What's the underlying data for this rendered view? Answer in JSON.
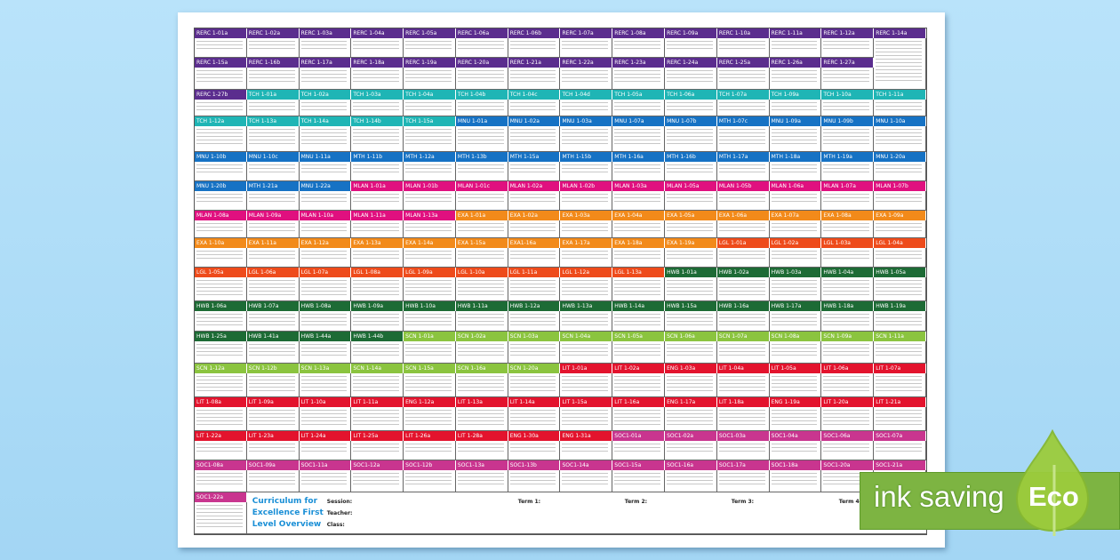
{
  "colors": {
    "RERC": "#5b2d8e",
    "TCH": "#1fb5b5",
    "MNU": "#1672c4",
    "MTH": "#1672c4",
    "MLAN": "#e0107f",
    "EXA": "#f28a1a",
    "LGL": "#ee4b1b",
    "HWB": "#1d6b35",
    "SCN": "#8bc43f",
    "LIT": "#e3132d",
    "ENG": "#e3132d",
    "SOC": "#c9358f",
    "title_blue": "#1a8fd6",
    "eco_green": "#7db442"
  },
  "rows": [
    [
      "RERC 1-01a",
      "RERC 1-02a",
      "RERC 1-03a",
      "RERC 1-04a",
      "RERC 1-05a",
      "RERC 1-06a",
      "RERC 1-06b",
      "RERC 1-07a",
      "RERC 1-08a",
      "RERC 1-09a",
      "RERC 1-10a",
      "RERC 1-11a",
      "RERC 1-12a",
      "RERC 1-14a"
    ],
    [
      "RERC 1-15a",
      "RERC 1-16b",
      "RERC 1-17a",
      "RERC 1-18a",
      "RERC 1-19a",
      "RERC 1-20a",
      "RERC 1-21a",
      "RERC 1-22a",
      "RERC 1-23a",
      "RERC 1-24a",
      "RERC 1-25a",
      "RERC 1-26a",
      "RERC 1-27a"
    ],
    [
      "RERC 1-27b",
      "TCH 1-01a",
      "TCH 1-02a",
      "TCH 1-03a",
      "TCH 1-04a",
      "TCH 1-04b",
      "TCH 1-04c",
      "TCH 1-04d",
      "TCH 1-05a",
      "TCH 1-06a",
      "TCH 1-07a",
      "TCH 1-09a",
      "TCH 1-10a",
      "TCH 1-11a"
    ],
    [
      "TCH 1-12a",
      "TCH 1-13a",
      "TCH 1-14a",
      "TCH 1-14b",
      "TCH 1-15a",
      "MNU 1-01a",
      "MNU 1-02a",
      "MNU 1-03a",
      "MNU 1-07a",
      "MNU 1-07b",
      "MTH 1-07c",
      "MNU 1-09a",
      "MNU 1-09b",
      "MNU 1-10a"
    ],
    [
      "MNU 1-10b",
      "MNU 1-10c",
      "MNU 1-11a",
      "MTH 1-11b",
      "MTH 1-12a",
      "MTH 1-13b",
      "MTH 1-15a",
      "MTH 1-15b",
      "MTH 1-16a",
      "MTH 1-16b",
      "MTH 1-17a",
      "MTH 1-18a",
      "MTH 1-19a",
      "MNU 1-20a"
    ],
    [
      "MNU 1-20b",
      "MTH 1-21a",
      "MNU 1-22a",
      "MLAN 1-01a",
      "MLAN 1-01b",
      "MLAN 1-01c",
      "MLAN 1-02a",
      "MLAN 1-02b",
      "MLAN 1-03a",
      "MLAN 1-05a",
      "MLAN 1-05b",
      "MLAN 1-06a",
      "MLAN 1-07a",
      "MLAN 1-07b"
    ],
    [
      "MLAN 1-08a",
      "MLAN 1-09a",
      "MLAN 1-10a",
      "MLAN 1-11a",
      "MLAN 1-13a",
      "EXA 1-01a",
      "EXA 1-02a",
      "EXA 1-03a",
      "EXA 1-04a",
      "EXA 1-05a",
      "EXA 1-06a",
      "EXA 1-07a",
      "EXA 1-08a",
      "EXA 1-09a"
    ],
    [
      "EXA 1-10a",
      "EXA 1-11a",
      "EXA 1-12a",
      "EXA 1-13a",
      "EXA 1-14a",
      "EXA 1-15a",
      "EXA1-16a",
      "EXA 1-17a",
      "EXA 1-18a",
      "EXA 1-19a",
      "LGL 1-01a",
      "LGL 1-02a",
      "LGL 1-03a",
      "LGL 1-04a"
    ],
    [
      "LGL 1-05a",
      "LGL 1-06a",
      "LGL 1-07a",
      "LGL 1-08a",
      "LGL 1-09a",
      "LGL 1-10a",
      "LGL 1-11a",
      "LGL 1-12a",
      "LGL 1-13a",
      "HWB 1-01a",
      "HWB 1-02a",
      "HWB 1-03a",
      "HWB 1-04a",
      "HWB 1-05a"
    ],
    [
      "HWB 1-06a",
      "HWB 1-07a",
      "HWB 1-08a",
      "HWB 1-09a",
      "HWB 1-10a",
      "HWB 1-11a",
      "HWB 1-12a",
      "HWB 1-13a",
      "HWB 1-14a",
      "HWB 1-15a",
      "HWB 1-16a",
      "HWB 1-17a",
      "HWB 1-18a",
      "HWB 1-19a"
    ],
    [
      "HWB 1-25a",
      "HWB 1-41a",
      "HWB 1-44a",
      "HWB 1-44b",
      "SCN 1-01a",
      "SCN 1-02a",
      "SCN 1-03a",
      "SCN 1-04a",
      "SCN 1-05a",
      "SCN 1-06a",
      "SCN 1-07a",
      "SCN 1-08a",
      "SCN 1-09a",
      "SCN 1-11a"
    ],
    [
      "SCN 1-12a",
      "SCN 1-12b",
      "SCN 1-13a",
      "SCN 1-14a",
      "SCN 1-15a",
      "SCN 1-16a",
      "SCN 1-20a",
      "LIT 1-01a",
      "LIT 1-02a",
      "ENG 1-03a",
      "LIT 1-04a",
      "LIT 1-05a",
      "LIT 1-06a",
      "LIT 1-07a"
    ],
    [
      "LIT 1-08a",
      "LIT 1-09a",
      "LIT 1-10a",
      "LIT 1-11a",
      "ENG 1-12a",
      "LIT 1-13a",
      "LIT 1-14a",
      "LIT 1-15a",
      "LIT 1-16a",
      "ENG 1-17a",
      "LIT 1-18a",
      "ENG 1-19a",
      "LIT 1-20a",
      "LIT 1-21a"
    ],
    [
      "LIT 1-22a",
      "LIT 1-23a",
      "LIT 1-24a",
      "LIT 1-25a",
      "LIT 1-26a",
      "LIT 1-28a",
      "ENG 1-30a",
      "ENG 1-31a",
      "SOC1-01a",
      "SOC1-02a",
      "SOC1-03a",
      "SOC1-04a",
      "SOC1-06a",
      "SOC1-07a"
    ],
    [
      "SOC1-08a",
      "SOC1-09a",
      "SOC1-11a",
      "SOC1-12a",
      "SOC1-12b",
      "SOC1-13a",
      "SOC1-13b",
      "SOC1-14a",
      "SOC1-15a",
      "SOC1-16a",
      "SOC1-17a",
      "SOC1-18a",
      "SOC1-20a",
      "SOC1-21a"
    ],
    [
      "SOC1-22a"
    ]
  ],
  "footer": {
    "title_lines": [
      "Curriculum for",
      "Excellence First",
      "Level Overview"
    ],
    "session_label": "Session:",
    "teacher_label": "Teacher:",
    "class_label": "Class:",
    "terms": [
      "Term 1:",
      "Term 2:",
      "Term 3:",
      "Term 4:"
    ]
  },
  "badge": {
    "text": "ink saving",
    "eco": "Eco",
    "icon": "leaf-icon"
  }
}
